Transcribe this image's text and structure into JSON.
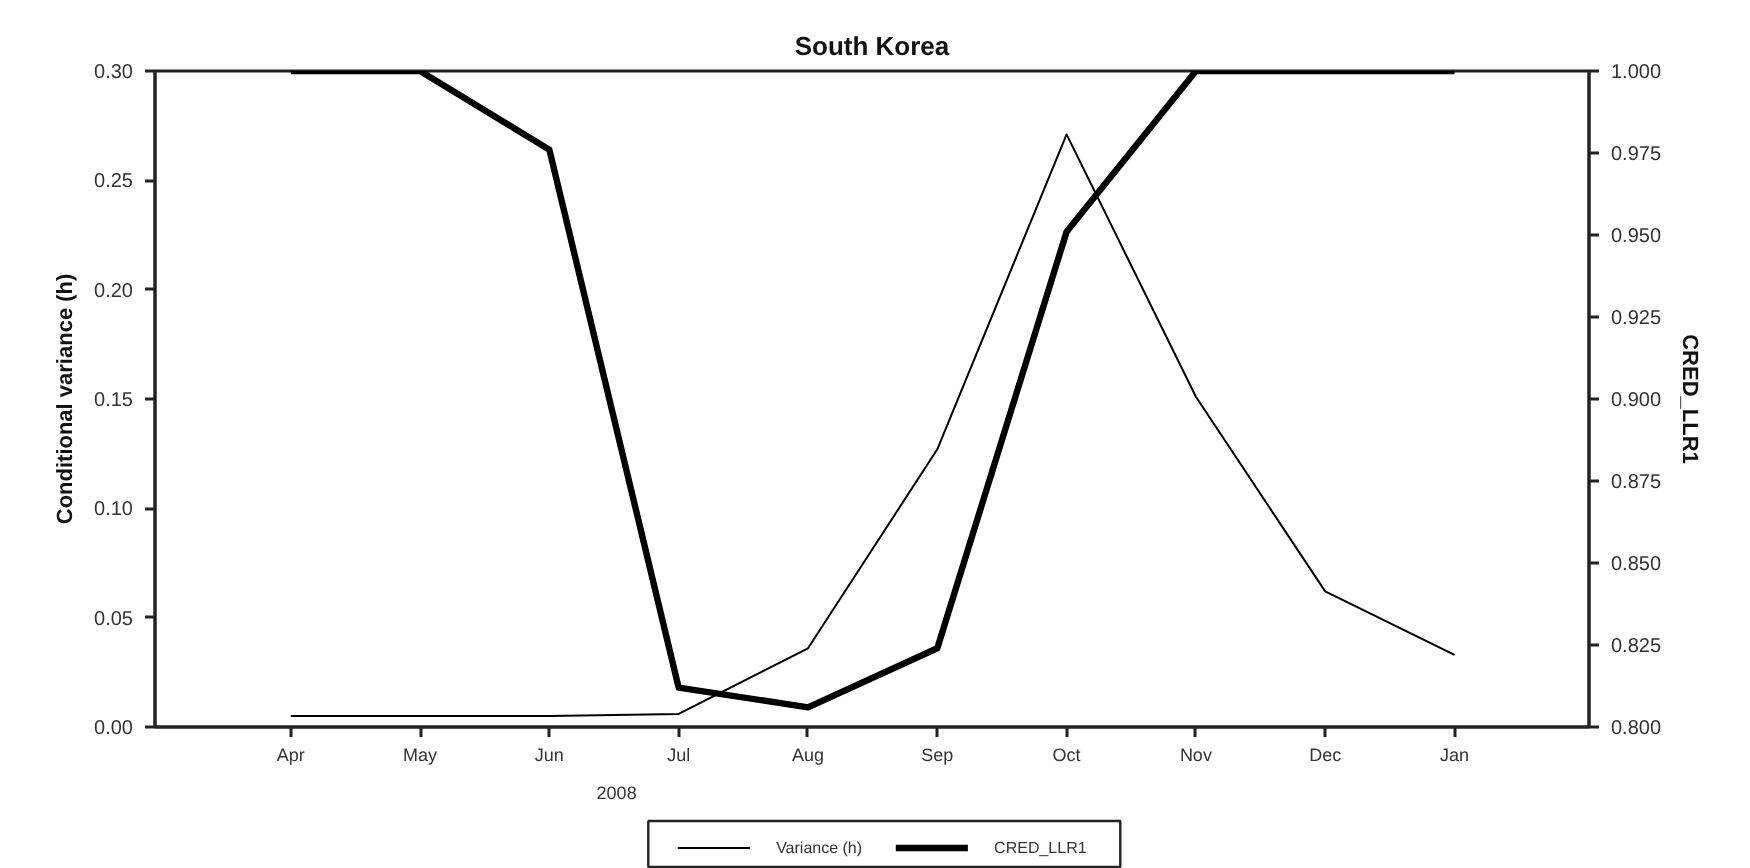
{
  "chart_data": {
    "type": "line",
    "title": "South Korea",
    "ylabel": "Conditional variance (h)",
    "y2label": "CRED_LLR1",
    "categories": [
      "Apr",
      "May",
      "Jun",
      "Jul",
      "Aug",
      "Sep",
      "Oct",
      "Nov",
      "Dec",
      "Jan"
    ],
    "series": [
      {
        "name": "Variance (h)",
        "color": "#000000",
        "values": [
          0.005,
          0.005,
          0.005,
          0.006,
          0.036,
          0.127,
          0.271,
          0.151,
          0.062,
          0.033
        ]
      },
      {
        "name": "CRED_LLR1",
        "color": "#000000",
        "axis": "y2",
        "values": [
          1.0,
          1.0,
          0.976,
          0.812,
          0.806,
          0.824,
          0.951,
          1.0,
          1.0,
          1.0
        ]
      }
    ],
    "ylim": [
      0,
      0.3
    ],
    "yticks": [
      {
        "value": 0,
        "label": "0.00"
      },
      0.05,
      {
        "value": 0.1,
        "label": "0.10"
      },
      0.15,
      {
        "value": 0.2,
        "label": "0.20"
      },
      0.25,
      {
        "value": 0.3,
        "label": "0.30"
      }
    ],
    "y2lim": [
      0.8,
      1.0
    ],
    "y2ticks": [
      {
        "value": 0.8,
        "label": "0.800"
      },
      0.825,
      {
        "value": 0.85,
        "label": "0.850"
      },
      0.875,
      {
        "value": 0.9,
        "label": "0.900"
      },
      0.925,
      {
        "value": 0.95,
        "label": "0.950"
      },
      0.975,
      {
        "value": 1.0,
        "label": "1.000"
      }
    ],
    "annotations": [
      "2008"
    ],
    "grid": false,
    "legend": "bottom"
  }
}
